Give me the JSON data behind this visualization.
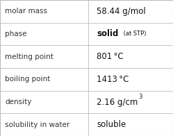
{
  "rows": [
    {
      "label": "molar mass",
      "value_parts": [
        {
          "text": "58.44 g/mol",
          "style": "normal"
        }
      ]
    },
    {
      "label": "phase",
      "value_parts": [
        {
          "text": "solid",
          "style": "bold"
        },
        {
          "text": " (at STP)",
          "style": "small"
        }
      ]
    },
    {
      "label": "melting point",
      "value_parts": [
        {
          "text": "801 °C",
          "style": "normal"
        }
      ]
    },
    {
      "label": "boiling point",
      "value_parts": [
        {
          "text": "1413 °C",
          "style": "normal"
        }
      ]
    },
    {
      "label": "density",
      "value_parts": [
        {
          "text": "2.16 g/cm",
          "style": "normal"
        },
        {
          "text": "3",
          "style": "super"
        }
      ]
    },
    {
      "label": "solubility in water",
      "value_parts": [
        {
          "text": "soluble",
          "style": "normal"
        }
      ]
    }
  ],
  "col_split": 0.51,
  "bg_color": "#ffffff",
  "line_color": "#bbbbbb",
  "label_fontsize": 7.5,
  "value_fontsize": 8.5,
  "small_fontsize": 6.0,
  "label_color": "#333333",
  "value_color": "#111111",
  "figwidth": 2.49,
  "figheight": 1.96,
  "dpi": 100
}
